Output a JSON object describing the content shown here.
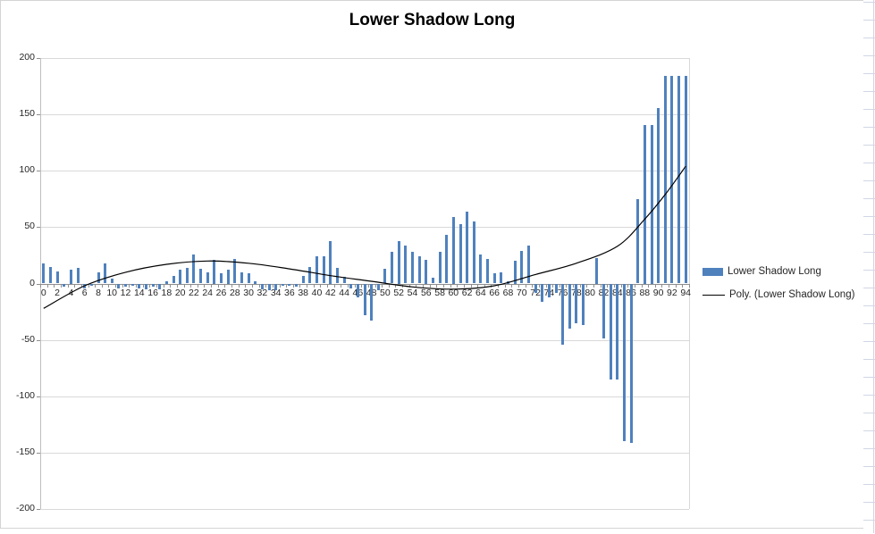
{
  "chart": {
    "title": "Lower Shadow Long",
    "legend": [
      {
        "label": "Lower Shadow Long",
        "swatch": "bar"
      },
      {
        "label": "Poly. (Lower Shadow Long)",
        "swatch": "line"
      }
    ]
  },
  "colors": {
    "bar": "#4f81bd",
    "trendline": "#000000",
    "gridline": "#d9d9d9",
    "axis": "#8e8e8e",
    "text": "#262626",
    "chart_border": "#d4d4d4",
    "sheet_gridline": "#d0d7e5"
  },
  "chart_data": {
    "type": "bar",
    "title": "Lower Shadow Long",
    "series": [
      {
        "name": "Lower Shadow Long",
        "type": "bar",
        "color": "#4f81bd",
        "x_start": 0,
        "x_step": 1,
        "values": [
          18,
          15,
          11,
          -3,
          12,
          14,
          -4,
          -2,
          10,
          18,
          4,
          -4,
          -3,
          -2,
          -4,
          -5,
          -3,
          -5,
          2,
          7,
          12,
          14,
          26,
          13,
          10,
          21,
          9,
          12,
          22,
          10,
          9,
          2,
          -5,
          -6,
          -6,
          -2,
          -2,
          -3,
          7,
          15,
          24,
          24,
          38,
          14,
          6,
          -4,
          -12,
          -28,
          -33,
          -6,
          13,
          28,
          38,
          34,
          28,
          24,
          21,
          5,
          28,
          43,
          59,
          53,
          64,
          55,
          26,
          22,
          9,
          10,
          2,
          20,
          29,
          34,
          -8,
          -16,
          -12,
          -8,
          -54,
          -40,
          -35,
          -37,
          0,
          23,
          -49,
          -85,
          -85,
          -140,
          -141,
          75,
          141,
          141,
          156,
          184,
          184,
          184,
          184
        ]
      }
    ],
    "trendline": {
      "name": "Poly. (Lower Shadow Long)",
      "style": "polynomial",
      "color": "#000000",
      "points": [
        [
          0,
          -22
        ],
        [
          6,
          -2
        ],
        [
          12,
          10
        ],
        [
          18,
          17
        ],
        [
          24,
          20
        ],
        [
          30,
          18
        ],
        [
          36,
          13
        ],
        [
          42,
          7
        ],
        [
          48,
          2
        ],
        [
          54,
          -3
        ],
        [
          60,
          -5
        ],
        [
          66,
          -2
        ],
        [
          72,
          8
        ],
        [
          78,
          18
        ],
        [
          84,
          33
        ],
        [
          88,
          57
        ],
        [
          91,
          79
        ],
        [
          94,
          104
        ]
      ]
    },
    "x_tick_labels": [
      0,
      2,
      4,
      6,
      8,
      10,
      12,
      14,
      16,
      18,
      20,
      22,
      24,
      26,
      28,
      30,
      32,
      34,
      36,
      38,
      40,
      42,
      44,
      46,
      48,
      50,
      52,
      54,
      56,
      58,
      60,
      62,
      64,
      66,
      68,
      70,
      72,
      74,
      76,
      78,
      80,
      82,
      84,
      86,
      88,
      90,
      92,
      94
    ],
    "y_tick_labels": [
      200,
      150,
      100,
      50,
      0,
      -50,
      -100,
      -150,
      -200
    ],
    "ylim": [
      -200,
      200
    ],
    "grid": true,
    "legend_position": "right"
  }
}
